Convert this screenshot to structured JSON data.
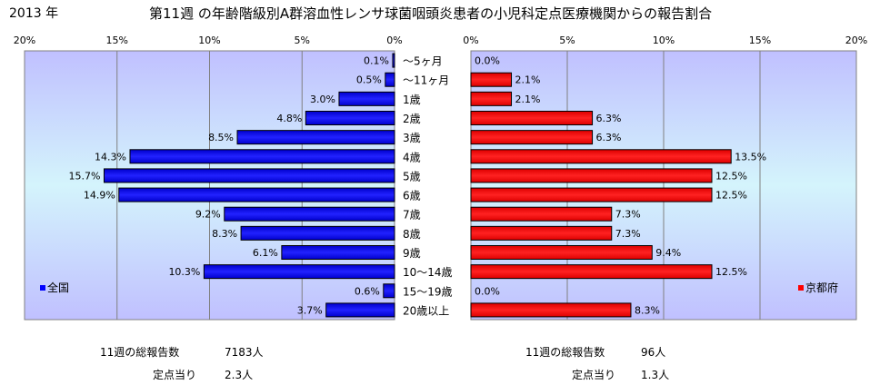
{
  "header": {
    "year": "2013 年",
    "title": "第11週 の年齢階級別A群溶血性レンサ球菌咽頭炎患者の小児科定点医療機関からの報告割合"
  },
  "chart_data": {
    "type": "bar",
    "categories": [
      "～5ヶ月",
      "～11ヶ月",
      "1歳",
      "2歳",
      "3歳",
      "4歳",
      "5歳",
      "6歳",
      "7歳",
      "8歳",
      "9歳",
      "10～14歳",
      "15～19歳",
      "20歳以上"
    ],
    "series": [
      {
        "name": "全国",
        "color": "#0000ff",
        "values": [
          0.1,
          0.5,
          3.0,
          4.8,
          8.5,
          14.3,
          15.7,
          14.9,
          9.2,
          8.3,
          6.1,
          10.3,
          0.6,
          3.7
        ],
        "labels": [
          "0.1%",
          "0.5%",
          "3.0%",
          "4.8%",
          "8.5%",
          "14.3%",
          "15.7%",
          "14.9%",
          "9.2%",
          "8.3%",
          "6.1%",
          "10.3%",
          "0.6%",
          "3.7%"
        ],
        "xlim": [
          0,
          20
        ],
        "axis_direction": "reversed",
        "ticks": [
          "0%",
          "5%",
          "10%",
          "15%",
          "20%"
        ],
        "legend": "全国"
      },
      {
        "name": "京都府",
        "color": "#ff0000",
        "values": [
          0.0,
          2.1,
          2.1,
          6.3,
          6.3,
          13.5,
          12.5,
          12.5,
          7.3,
          7.3,
          9.4,
          12.5,
          0.0,
          8.3
        ],
        "labels": [
          "0.0%",
          "2.1%",
          "2.1%",
          "6.3%",
          "6.3%",
          "13.5%",
          "12.5%",
          "12.5%",
          "7.3%",
          "7.3%",
          "9.4%",
          "12.5%",
          "0.0%",
          "8.3%"
        ],
        "xlim": [
          0,
          20
        ],
        "axis_direction": "normal",
        "ticks": [
          "0%",
          "5%",
          "10%",
          "15%",
          "20%"
        ],
        "legend": "京都府"
      }
    ],
    "tick_values": [
      0,
      5,
      10,
      15,
      20
    ],
    "legend_placement": "bottom-left / bottom-right",
    "grid": true
  },
  "stats": {
    "national": {
      "total_label": "11週の総報告数",
      "total_value": "7183人",
      "per_site_label": "定点当り",
      "per_site_value": "2.3人"
    },
    "kyoto": {
      "total_label": "11週の総報告数",
      "total_value": "96人",
      "per_site_label": "定点当り",
      "per_site_value": "1.3人"
    }
  }
}
